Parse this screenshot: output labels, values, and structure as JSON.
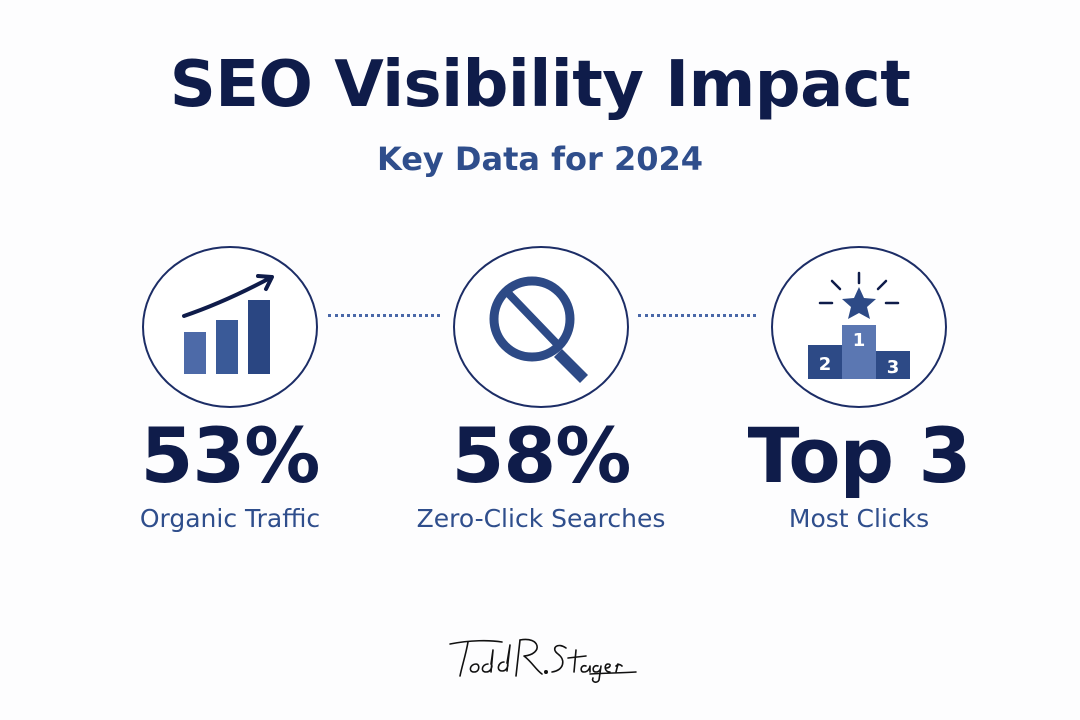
{
  "header": {
    "title": "SEO Visibility Impact",
    "subtitle": "Key Data for 2024"
  },
  "stats": [
    {
      "icon": "bar-chart-growth-icon",
      "value": "53%",
      "label": "Organic Traffic"
    },
    {
      "icon": "magnifier-no-click-icon",
      "value": "58%",
      "label": "Zero-Click Searches"
    },
    {
      "icon": "podium-star-icon",
      "value": "Top 3",
      "label": "Most Clicks"
    }
  ],
  "podium": {
    "first": "1",
    "second": "2",
    "third": "3"
  },
  "signature": {
    "text": "Todd R. Stager"
  },
  "colors": {
    "navy": "#0f1c4a",
    "blue": "#2f4e8c",
    "icon_blue": "#2d4a86",
    "icon_light": "#4d6aa8",
    "background": "#fdfdfe"
  }
}
